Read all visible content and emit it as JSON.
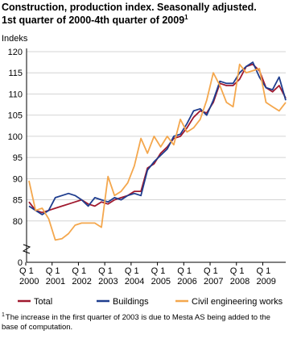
{
  "chart_data": {
    "type": "line",
    "title_lines": [
      "Construction, production index. Seasonally adjusted.",
      "1st quarter of 2000-4th quarter of 2009"
    ],
    "title_note": "1",
    "y_label": "Indeks",
    "categories": [
      [
        "Q 1",
        "2000"
      ],
      null,
      null,
      null,
      [
        "Q 1",
        "2001"
      ],
      null,
      null,
      null,
      [
        "Q 1",
        "2002"
      ],
      null,
      null,
      null,
      [
        "Q 1",
        "2003"
      ],
      null,
      null,
      null,
      [
        "Q 1",
        "2004"
      ],
      null,
      null,
      null,
      [
        "Q 1",
        "2005"
      ],
      null,
      null,
      null,
      [
        "Q 1",
        "2006"
      ],
      null,
      null,
      null,
      [
        "Q 1",
        "2007"
      ],
      null,
      null,
      null,
      [
        "Q 1",
        "2008"
      ],
      null,
      null,
      null,
      [
        "Q 1",
        "2009"
      ],
      null,
      null,
      null
    ],
    "series": [
      {
        "name": "Total",
        "color": "#a0192e",
        "values": [
          84.5,
          82.5,
          82,
          82.5,
          83,
          83.5,
          84,
          84.5,
          85,
          84,
          83.5,
          84.5,
          84,
          85,
          85.5,
          86,
          87,
          87,
          92.5,
          93.5,
          96,
          97.5,
          99.5,
          100,
          102,
          104.5,
          106,
          105.5,
          108,
          112.5,
          112,
          112,
          113.5,
          116.5,
          117,
          115.5,
          111.5,
          110.5,
          112,
          109
        ]
      },
      {
        "name": "Buildings",
        "color": "#1f3d8e",
        "values": [
          83.5,
          82.5,
          81.5,
          82.5,
          85.5,
          86,
          86.5,
          86,
          85,
          83.5,
          85.5,
          85,
          84.5,
          85.5,
          85,
          86,
          86.5,
          86,
          92,
          94,
          95.5,
          97,
          100,
          100.5,
          103,
          106,
          106.5,
          105,
          108.5,
          113,
          112.5,
          112.5,
          115,
          116.5,
          117.5,
          114,
          111.5,
          111,
          114,
          108.5
        ]
      },
      {
        "name": "Civil engineering works",
        "color": "#f4a74d",
        "values": [
          89.5,
          82.5,
          83,
          80.5,
          75.5,
          75.8,
          77,
          79,
          79.5,
          79.5,
          79.5,
          78.5,
          90.5,
          86,
          87,
          89,
          93,
          99.5,
          96,
          100,
          97.5,
          100,
          98,
          104,
          101,
          102,
          104,
          108.5,
          115,
          112,
          108,
          107,
          117,
          115,
          115.5,
          116,
          108,
          107,
          106,
          108
        ]
      }
    ],
    "ylim": [
      0,
      120
    ],
    "axis_break": [
      0,
      75
    ],
    "yticks": [
      0,
      80,
      85,
      90,
      95,
      100,
      105,
      110,
      115,
      120
    ],
    "grid": true,
    "footnote": {
      "marker": "1",
      "lines": [
        "The increase in the first quarter of 2003 is due to Mesta AS being added to the",
        "base of computation."
      ]
    }
  }
}
